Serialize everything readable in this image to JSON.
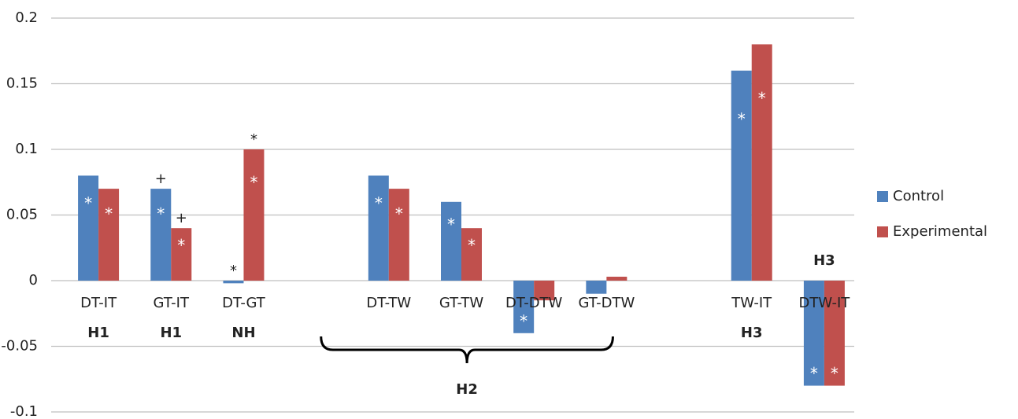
{
  "chart_data": {
    "type": "bar",
    "categories": [
      "DT-IT",
      "GT-IT",
      "DT-GT",
      null,
      "DT-TW",
      "GT-TW",
      "DT-DTW",
      "GT-DTW",
      null,
      "TW-IT",
      "DTW-IT"
    ],
    "series": [
      {
        "name": "Control",
        "color": "#4f81bd",
        "values": [
          0.08,
          0.07,
          -0.002,
          null,
          0.08,
          0.06,
          -0.04,
          -0.01,
          null,
          0.16,
          -0.08
        ],
        "markers": [
          "*",
          "*",
          null,
          null,
          "*",
          "*",
          "*",
          null,
          null,
          "*",
          "*"
        ],
        "top_markers": [
          null,
          "+",
          "*",
          null,
          null,
          null,
          null,
          null,
          null,
          null,
          null
        ]
      },
      {
        "name": "Experimental",
        "color": "#c0504d",
        "values": [
          0.07,
          0.04,
          0.1,
          null,
          0.07,
          0.04,
          -0.015,
          0.003,
          null,
          0.18,
          -0.08
        ],
        "markers": [
          "*",
          "*",
          "*",
          null,
          "*",
          "*",
          null,
          null,
          null,
          "*",
          "*"
        ],
        "top_markers": [
          null,
          "+",
          "*",
          null,
          null,
          null,
          null,
          null,
          null,
          null,
          null
        ]
      }
    ],
    "hypotheses": [
      "H1",
      "H1",
      "NH",
      null,
      "H2",
      null,
      null,
      null,
      null,
      "H3",
      "H3"
    ],
    "ylim": [
      -0.1,
      0.2
    ],
    "yticks": [
      -0.1,
      -0.05,
      0,
      0.05,
      0.1,
      0.15,
      0.2
    ],
    "grid": true,
    "legend": "right"
  }
}
